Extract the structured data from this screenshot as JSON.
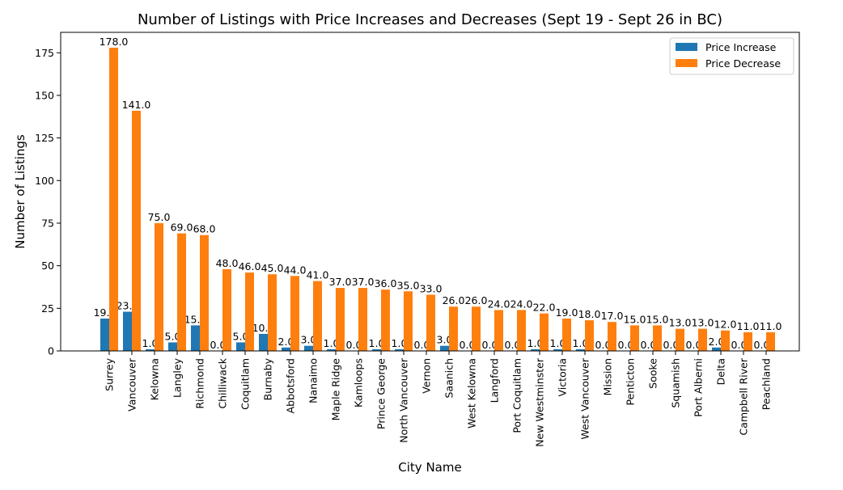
{
  "chart_data": {
    "type": "bar",
    "title": "Number of Listings with Price Increases and Decreases (Sept 19 - Sept 26 in BC)",
    "xlabel": "City Name",
    "ylabel": "Number of Listings",
    "ylim": [
      0,
      187
    ],
    "yticks": [
      0,
      25,
      50,
      75,
      100,
      125,
      150,
      175
    ],
    "legend_position": "top-right",
    "grid": false,
    "categories": [
      "Surrey",
      "Vancouver",
      "Kelowna",
      "Langley",
      "Richmond",
      "Chilliwack",
      "Coquitlam",
      "Burnaby",
      "Abbotsford",
      "Nanaimo",
      "Maple Ridge",
      "Kamloops",
      "Prince George",
      "North Vancouver",
      "Vernon",
      "Saanich",
      "West Kelowna",
      "Langford",
      "Port Coquitlam",
      "New Westminster",
      "Victoria",
      "West Vancouver",
      "Mission",
      "Penticton",
      "Sooke",
      "Squamish",
      "Port Alberni",
      "Delta",
      "Campbell River",
      "Peachland"
    ],
    "series": [
      {
        "name": "Price Increase",
        "color": "#1f77b4",
        "values": [
          19,
          23,
          1,
          5,
          15,
          0,
          5,
          10,
          2,
          3,
          1,
          0,
          1,
          1,
          0,
          3,
          0,
          0,
          0,
          1,
          1,
          1,
          0,
          0,
          0,
          0,
          0,
          2,
          0,
          0
        ]
      },
      {
        "name": "Price Decrease",
        "color": "#ff7f0e",
        "values": [
          178,
          141,
          75,
          69,
          68,
          48,
          46,
          45,
          44,
          41,
          37,
          37,
          36,
          35,
          33,
          26,
          26,
          24,
          24,
          22,
          19,
          18,
          17,
          15,
          15,
          13,
          13,
          12,
          11,
          11
        ]
      }
    ]
  }
}
